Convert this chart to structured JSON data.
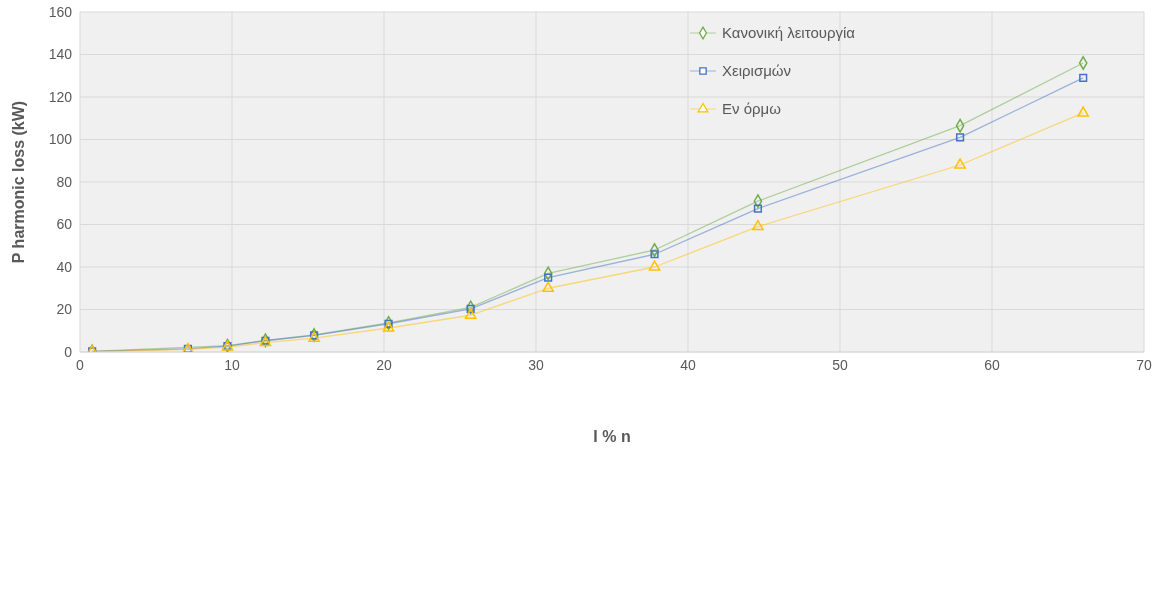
{
  "chart_data": {
    "type": "line",
    "xlabel": "I % n",
    "ylabel": "P harmonic loss (kW)",
    "x": [
      0.8,
      7.1,
      9.7,
      12.2,
      15.4,
      20.3,
      25.7,
      30.8,
      37.8,
      44.6,
      57.9,
      66
    ],
    "series": [
      {
        "name": "Κανονική λειτουργία",
        "color": "#70ad47",
        "marker": "diamond",
        "values": [
          0.3,
          null,
          3,
          5.5,
          8,
          13.7,
          21,
          37,
          48,
          71,
          106.5,
          136
        ]
      },
      {
        "name": "Χειρισμών",
        "color": "#4472c4",
        "marker": "square",
        "values": [
          0.3,
          1.5,
          2.8,
          5.3,
          7.8,
          13.3,
          20.3,
          35,
          46,
          67.5,
          101,
          129
        ]
      },
      {
        "name": "Εν όρμω",
        "color": "#ffc000",
        "marker": "triangle",
        "values": [
          0.2,
          1.2,
          2.3,
          4.4,
          6.5,
          11.3,
          17.3,
          30,
          40,
          59,
          88,
          112.5
        ]
      }
    ],
    "xlim": [
      0,
      70
    ],
    "xticks": [
      0,
      10,
      20,
      30,
      40,
      50,
      60,
      70
    ],
    "ylim": [
      0,
      160
    ],
    "yticks": [
      0,
      20,
      40,
      60,
      80,
      100,
      120,
      140,
      160
    ],
    "grid": true,
    "legend": "top right",
    "line_style": "solid"
  }
}
